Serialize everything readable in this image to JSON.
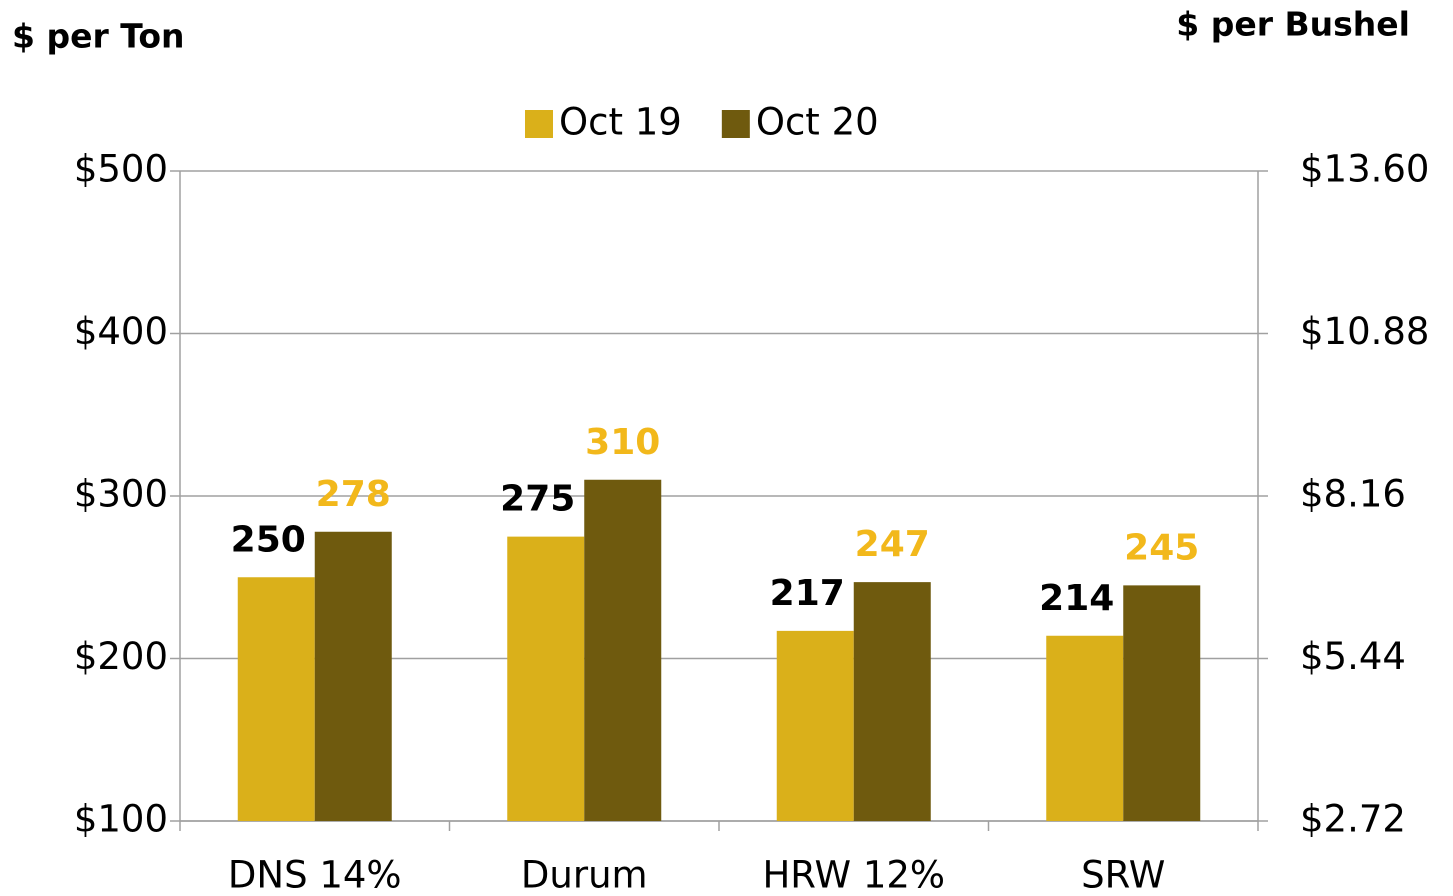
{
  "chart_data": {
    "type": "bar",
    "y_label": "$ per Ton",
    "y2_label": "$ per Bushel",
    "categories": [
      "DNS 14%",
      "Durum",
      "HRW 12%",
      "SRW"
    ],
    "series": [
      {
        "name": "Oct 19",
        "color": "#dab01a",
        "label_color": "#000000",
        "values": [
          250,
          275,
          217,
          214
        ]
      },
      {
        "name": "Oct 20",
        "color": "#6f5a0e",
        "label_color": "#f2b81b",
        "values": [
          278,
          310,
          247,
          245
        ]
      }
    ],
    "ylim": [
      100,
      500
    ],
    "yticks": [
      {
        "value": 100,
        "label": "$100"
      },
      {
        "value": 200,
        "label": "$200"
      },
      {
        "value": 300,
        "label": "$300"
      },
      {
        "value": 400,
        "label": "$400"
      },
      {
        "value": 500,
        "label": "$500"
      }
    ],
    "y2lim": [
      2.72,
      13.6
    ],
    "y2ticks": [
      {
        "value": 2.72,
        "label": "$2.72"
      },
      {
        "value": 5.44,
        "label": "$5.44"
      },
      {
        "value": 8.16,
        "label": "$8.16"
      },
      {
        "value": 10.88,
        "label": "$10.88"
      },
      {
        "value": 13.6,
        "label": "$13.60"
      }
    ],
    "grid": true,
    "legend": "top"
  }
}
